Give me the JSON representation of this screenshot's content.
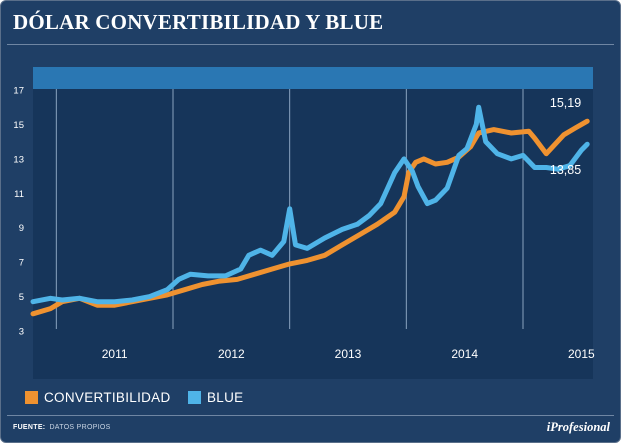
{
  "header": {
    "title": "DÓLAR CONVERTIBILIDAD Y BLUE"
  },
  "footer": {
    "source_label": "FUENTE:",
    "source_text": "DATOS PROPIOS",
    "logo": "iProfesional"
  },
  "colors": {
    "background": "#1f3f66",
    "plot_background": "#16355a",
    "plot_band": "#2a77b3",
    "convertibilidad": "#ef9230",
    "blue": "#4fb4e8",
    "text": "#ffffff"
  },
  "chart_data": {
    "type": "line",
    "title": "DÓLAR CONVERTIBILIDAD Y BLUE",
    "xlabel": "",
    "ylabel": "",
    "x_ticks": [
      "2011",
      "2012",
      "2013",
      "2014",
      "2015"
    ],
    "y_ticks": [
      3,
      5,
      7,
      9,
      11,
      13,
      15,
      17
    ],
    "ylim": [
      3,
      17
    ],
    "xlim": [
      2010.8,
      2015.6
    ],
    "grid": {
      "horizontal": false,
      "vertical": "year boundaries"
    },
    "legend": {
      "placement": "bottom-left"
    },
    "annotations": [
      {
        "text": "15,19",
        "series": "CONVERTIBILIDAD"
      },
      {
        "text": "13,85",
        "series": "BLUE"
      }
    ],
    "series": [
      {
        "name": "CONVERTIBILIDAD",
        "x": [
          2010.8,
          2010.95,
          2011.05,
          2011.2,
          2011.35,
          2011.5,
          2011.65,
          2011.8,
          2011.95,
          2012.1,
          2012.25,
          2012.4,
          2012.55,
          2012.7,
          2012.85,
          2013.0,
          2013.15,
          2013.3,
          2013.45,
          2013.6,
          2013.75,
          2013.9,
          2013.98,
          2014.02,
          2014.08,
          2014.15,
          2014.25,
          2014.35,
          2014.45,
          2014.55,
          2014.62,
          2014.75,
          2014.9,
          2015.05,
          2015.1,
          2015.2,
          2015.35,
          2015.45,
          2015.55
        ],
        "y": [
          4.0,
          4.3,
          4.7,
          4.9,
          4.5,
          4.5,
          4.7,
          4.9,
          5.1,
          5.4,
          5.7,
          5.9,
          6.0,
          6.3,
          6.6,
          6.9,
          7.1,
          7.4,
          8.0,
          8.6,
          9.2,
          9.9,
          10.8,
          12.2,
          12.8,
          13.0,
          12.7,
          12.8,
          13.1,
          13.7,
          14.5,
          14.7,
          14.5,
          14.6,
          14.2,
          13.3,
          14.4,
          14.8,
          15.19
        ]
      },
      {
        "name": "BLUE",
        "x": [
          2010.8,
          2010.95,
          2011.05,
          2011.2,
          2011.35,
          2011.5,
          2011.65,
          2011.8,
          2011.95,
          2012.05,
          2012.15,
          2012.3,
          2012.45,
          2012.58,
          2012.65,
          2012.75,
          2012.85,
          2012.95,
          2013.0,
          2013.05,
          2013.15,
          2013.3,
          2013.45,
          2013.58,
          2013.68,
          2013.78,
          2013.9,
          2013.98,
          2014.05,
          2014.1,
          2014.18,
          2014.25,
          2014.35,
          2014.45,
          2014.52,
          2014.6,
          2014.62,
          2014.68,
          2014.78,
          2014.9,
          2015.0,
          2015.1,
          2015.2,
          2015.3,
          2015.4,
          2015.5,
          2015.55
        ],
        "y": [
          4.7,
          4.9,
          4.8,
          4.9,
          4.7,
          4.7,
          4.8,
          5.0,
          5.4,
          6.0,
          6.3,
          6.2,
          6.2,
          6.6,
          7.4,
          7.7,
          7.4,
          8.2,
          10.1,
          8.0,
          7.8,
          8.4,
          8.9,
          9.2,
          9.7,
          10.4,
          12.2,
          13.0,
          12.3,
          11.4,
          10.4,
          10.6,
          11.3,
          13.2,
          13.6,
          15.0,
          16.0,
          14.0,
          13.3,
          13.0,
          13.2,
          12.5,
          12.5,
          12.4,
          12.6,
          13.5,
          13.85
        ]
      }
    ]
  },
  "legend": {
    "items": [
      {
        "label": "CONVERTIBILIDAD"
      },
      {
        "label": "BLUE"
      }
    ]
  }
}
